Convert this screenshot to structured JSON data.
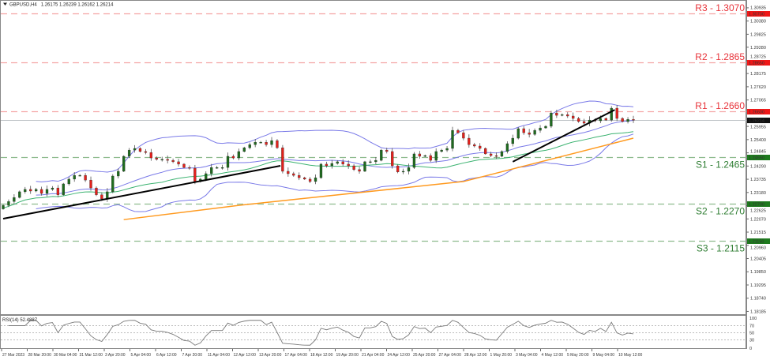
{
  "header": {
    "symbol": "GBPUSD,H4",
    "ohlc": "1.26175 1.26239 1.26162 1.26214"
  },
  "colors": {
    "bull": "#1f6b1f",
    "bear": "#e3211c",
    "bollinger": "#7a7ae8",
    "sma": "#3cb371",
    "ma_long": "#ff9a1f",
    "trendline": "#000000",
    "resistance": "#e8333a",
    "resistance_line": "#f4a3a3",
    "support": "#2e7d32",
    "support_line": "#8fbc8f",
    "rsi": "#7a7a7a"
  },
  "chart_data": {
    "type": "candlestick",
    "symbol": "GBPUSD",
    "timeframe": "H4",
    "ylim": [
      1.18,
      1.3116
    ],
    "closes": [
      1.2264,
      1.228,
      1.2297,
      1.2321,
      1.2331,
      1.2324,
      1.2331,
      1.2314,
      1.2331,
      1.2337,
      1.2308,
      1.2354,
      1.2374,
      1.239,
      1.239,
      1.237,
      1.2337,
      1.2308,
      1.2291,
      1.2321,
      1.2387,
      1.2407,
      1.247,
      1.2496,
      1.2503,
      1.249,
      1.2486,
      1.2463,
      1.2457,
      1.2457,
      1.2453,
      1.2447,
      1.2437,
      1.2423,
      1.242,
      1.2364,
      1.2374,
      1.2397,
      1.2423,
      1.2423,
      1.2423,
      1.247,
      1.2463,
      1.249,
      1.2506,
      1.2519,
      1.2529,
      1.2529,
      1.2519,
      1.2536,
      1.2506,
      1.2407,
      1.2397,
      1.239,
      1.238,
      1.2374,
      1.2364,
      1.238,
      1.2437,
      1.243,
      1.244,
      1.2447,
      1.2437,
      1.243,
      1.2414,
      1.2407,
      1.2447,
      1.2447,
      1.2453,
      1.2496,
      1.249,
      1.243,
      1.2404,
      1.2407,
      1.2423,
      1.248,
      1.247,
      1.2473,
      1.2453,
      1.249,
      1.2496,
      1.2503,
      1.2579,
      1.2569,
      1.2546,
      1.2519,
      1.2513,
      1.2503,
      1.248,
      1.2473,
      1.247,
      1.249,
      1.2523,
      1.2546,
      1.2586,
      1.2569,
      1.2562,
      1.2579,
      1.2589,
      1.2596,
      1.2652,
      1.2642,
      1.2645,
      1.2639,
      1.2629,
      1.2616,
      1.2609,
      1.2622,
      1.2619,
      1.2629,
      1.2622,
      1.2672,
      1.2629,
      1.2616,
      1.2625,
      1.26214
    ],
    "current_price": "1.26214",
    "ma_long": [
      [
        22,
        1.2204
      ],
      [
        43,
        1.2264
      ],
      [
        84,
        1.2364
      ],
      [
        115,
        1.2546
      ]
    ],
    "trendlines": [
      [
        [
          0,
          1.2208
        ],
        [
          50.6,
          1.243
        ]
      ],
      [
        [
          93,
          1.2447
        ],
        [
          111.6,
          1.2665
        ]
      ]
    ],
    "levels": [
      {
        "label": "R3 - 1.3070",
        "price": 1.307,
        "axis_label": "1.30700",
        "kind": "resistance"
      },
      {
        "label": "R2 - 1.2865",
        "price": 1.2865,
        "axis_label": "1.28650",
        "kind": "resistance"
      },
      {
        "label": "R1 - 1.2660",
        "price": 1.266,
        "axis_label": "1.26600",
        "kind": "resistance"
      },
      {
        "label": "S1 - 1.2465",
        "price": 1.2465,
        "axis_label": "1.24650",
        "kind": "support"
      },
      {
        "label": "S2 - 1.2270",
        "price": 1.227,
        "axis_label": "1.22700",
        "kind": "support"
      },
      {
        "label": "S3 - 1.2115",
        "price": 1.2115,
        "axis_label": "1.21150",
        "kind": "support"
      }
    ],
    "price_ticks": [
      "1.30935",
      "1.30380",
      "1.29825",
      "1.29280",
      "1.28725",
      "1.28175",
      "1.27620",
      "1.27065",
      "1.25955",
      "1.25400",
      "1.24845",
      "1.24290",
      "1.23735",
      "1.23180",
      "1.22625",
      "1.22070",
      "1.21515",
      "1.20960",
      "1.20405",
      "1.19850",
      "1.19295",
      "1.18740",
      "1.18185"
    ],
    "time_labels": [
      "27 Mar 2023",
      "28 Mar 20:00",
      "30 Mar 04:00",
      "31 Mar 12:00",
      "3 Apr 20:00",
      "5 Apr 04:00",
      "6 Apr 12:00",
      "7 Apr 20:00",
      "11 Apr 04:00",
      "12 Apr 12:00",
      "13 Apr 20:00",
      "17 Apr 04:00",
      "18 Apr 12:00",
      "19 Apr 20:00",
      "21 Apr 04:00",
      "24 Apr 12:00",
      "25 Apr 20:00",
      "27 Apr 04:00",
      "28 Apr 12:00",
      "1 May 20:00",
      "3 May 04:00",
      "4 May 12:00",
      "5 May 20:00",
      "9 May 04:00",
      "10 May 12:00"
    ],
    "rsi": {
      "label": "RSI(14) 52.4887",
      "ylim": [
        0,
        100
      ],
      "ticks": [
        "100",
        "70",
        "50",
        "30",
        "0"
      ],
      "levels": [
        70,
        50,
        30
      ]
    }
  }
}
